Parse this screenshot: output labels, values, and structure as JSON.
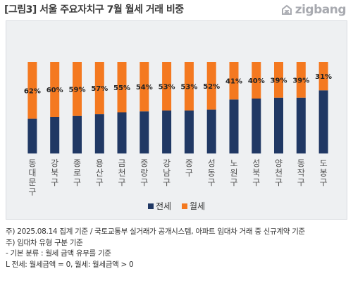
{
  "title": "[그림3] 서울 주요자치구 7월 월세 거래 비중",
  "brand": {
    "name": "zigbang",
    "icon": "zigbang-logo-icon"
  },
  "colors": {
    "jeonse": "#203864",
    "wolse": "#f47920",
    "background": "#eef0f2"
  },
  "chart_data": {
    "type": "bar",
    "stacked": true,
    "normalized": true,
    "categories": [
      "동대문구",
      "강북구",
      "종로구",
      "용산구",
      "금천구",
      "중랑구",
      "강남구",
      "중구",
      "성동구",
      "노원구",
      "성북구",
      "양천구",
      "동작구",
      "도봉구"
    ],
    "series": [
      {
        "name": "전세",
        "values": [
          38,
          40,
          41,
          43,
          45,
          46,
          47,
          47,
          48,
          59,
          60,
          61,
          61,
          69
        ]
      },
      {
        "name": "월세",
        "values": [
          62,
          60,
          59,
          57,
          55,
          54,
          53,
          53,
          52,
          41,
          40,
          39,
          39,
          31
        ]
      }
    ],
    "data_labels": [
      "62%",
      "60%",
      "59%",
      "57%",
      "55%",
      "54%",
      "53%",
      "53%",
      "52%",
      "41%",
      "40%",
      "39%",
      "39%",
      "31%"
    ],
    "ylim": [
      0,
      100
    ],
    "legend": {
      "position": "bottom",
      "entries": [
        "전세",
        "월세"
      ]
    },
    "grid": false
  },
  "notes": [
    "주) 2025.08.14 집계 기준 / 국토교통부 실거래가 공개시스템, 아파트 임대차 거래  중 신규계약 기준",
    "주) 임대차 유형 구분 기준",
    " - 기본 분류 : 월세 금액 유무를 기준",
    "  L 전세: 월세금액 = 0, 월세: 월세금액 > 0"
  ]
}
